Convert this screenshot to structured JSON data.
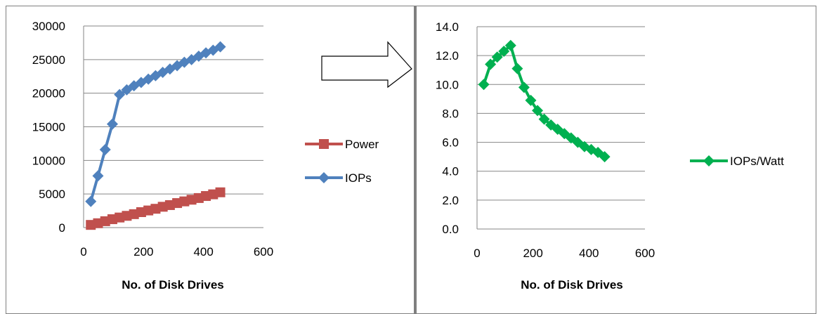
{
  "colors": {
    "power": "#C0504D",
    "iops": "#4F81BD",
    "iops_per_watt": "#00B050",
    "gridline": "#868686",
    "axis": "#868686",
    "border": "#808080",
    "divider": "#7F7F7F"
  },
  "chart_data": [
    {
      "type": "line",
      "title": "",
      "xlabel": "No. of Disk Drives",
      "ylabel": "",
      "xlim": [
        0,
        600
      ],
      "ylim": [
        0,
        30000
      ],
      "xticks": [
        0,
        200,
        400,
        600
      ],
      "yticks": [
        0,
        5000,
        10000,
        15000,
        20000,
        25000,
        30000
      ],
      "x_tick_labels": [
        "0",
        "200",
        "400",
        "600"
      ],
      "y_tick_labels": [
        "0",
        "5000",
        "10000",
        "15000",
        "20000",
        "25000",
        "30000"
      ],
      "grid": "horizontal",
      "legend_position": "right",
      "series": [
        {
          "name": "Power",
          "marker": "square",
          "color": "#C0504D",
          "x": [
            24,
            48,
            72,
            96,
            120,
            144,
            168,
            192,
            216,
            240,
            264,
            288,
            312,
            336,
            360,
            384,
            408,
            432,
            456
          ],
          "y": [
            400,
            650,
            950,
            1250,
            1500,
            1750,
            2000,
            2300,
            2550,
            2800,
            3100,
            3350,
            3650,
            3900,
            4150,
            4400,
            4700,
            4950,
            5250
          ]
        },
        {
          "name": "IOPs",
          "marker": "diamond",
          "color": "#4F81BD",
          "x": [
            24,
            48,
            72,
            96,
            120,
            144,
            168,
            192,
            216,
            240,
            264,
            288,
            312,
            336,
            360,
            384,
            408,
            432,
            456
          ],
          "y": [
            3900,
            7700,
            11600,
            15400,
            19800,
            20500,
            21100,
            21600,
            22100,
            22600,
            23100,
            23600,
            24100,
            24600,
            25000,
            25500,
            26000,
            26400,
            26900
          ]
        }
      ]
    },
    {
      "type": "line",
      "title": "",
      "xlabel": "No. of Disk Drives",
      "ylabel": "",
      "xlim": [
        0,
        600
      ],
      "ylim": [
        0,
        14
      ],
      "xticks": [
        0,
        200,
        400,
        600
      ],
      "yticks": [
        0,
        2,
        4,
        6,
        8,
        10,
        12,
        14
      ],
      "x_tick_labels": [
        "0",
        "200",
        "400",
        "600"
      ],
      "y_tick_labels": [
        "0.0",
        "2.0",
        "4.0",
        "6.0",
        "8.0",
        "10.0",
        "12.0",
        "14.0"
      ],
      "grid": "horizontal",
      "legend_position": "right",
      "series": [
        {
          "name": "IOPs/Watt",
          "marker": "diamond",
          "color": "#00B050",
          "x": [
            24,
            48,
            72,
            96,
            120,
            144,
            168,
            192,
            216,
            240,
            264,
            288,
            312,
            336,
            360,
            384,
            408,
            432,
            456
          ],
          "y": [
            10.0,
            11.4,
            11.9,
            12.3,
            12.7,
            11.1,
            9.8,
            8.9,
            8.2,
            7.6,
            7.2,
            6.9,
            6.6,
            6.3,
            6.0,
            5.7,
            5.5,
            5.3,
            5.0
          ]
        }
      ]
    }
  ]
}
